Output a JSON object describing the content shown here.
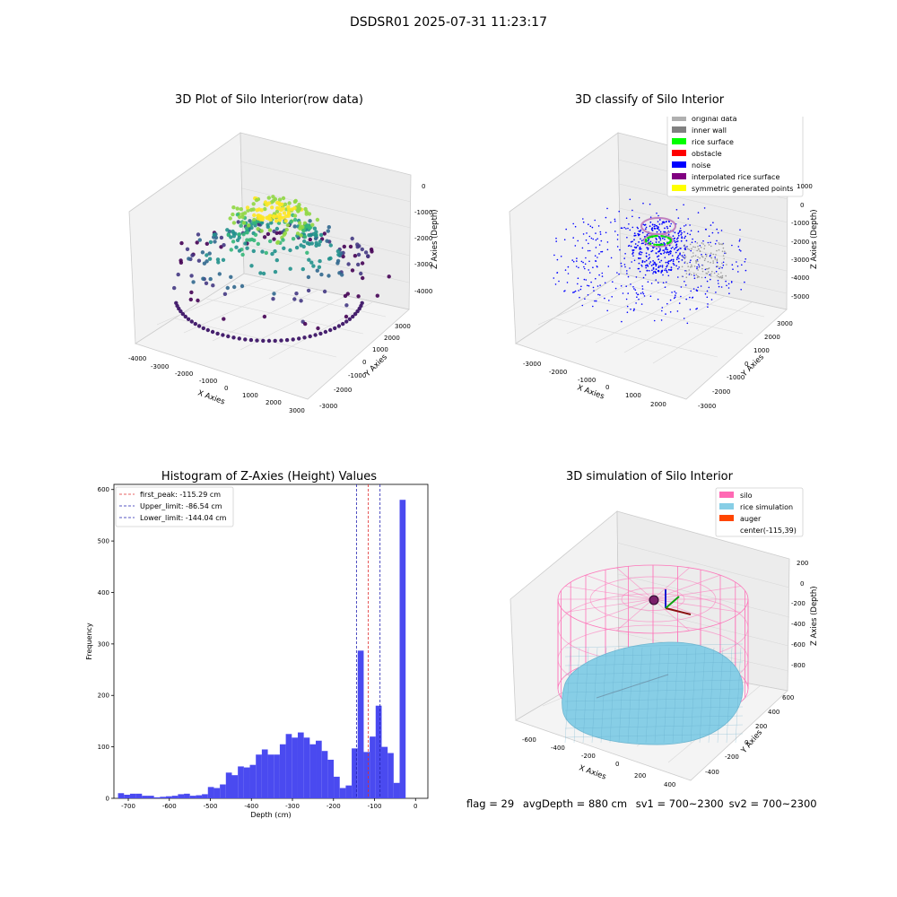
{
  "figure_title": "DSDSR01 2025-07-31 11:23:17",
  "status_line": {
    "flag": "flag = 29",
    "avg_depth": "avgDepth = 880 cm",
    "sv1": "sv1 = 700~2300",
    "sv2": "sv2 = 700~2300"
  },
  "chart_data": [
    {
      "type": "scatter",
      "title": "3D Plot of Silo Interior(row data)",
      "xlabel": "X Axies",
      "ylabel": "Y Axies",
      "zlabel": "Z Axies (Depth)",
      "x_ticks": [
        "-4000",
        "-3000",
        "-2000",
        "-1000",
        "0",
        "1000",
        "2000",
        "3000"
      ],
      "y_ticks": [
        "-3000",
        "-2000",
        "-1000",
        "0",
        "1000",
        "2000",
        "3000"
      ],
      "z_ticks": [
        "0",
        "-1000",
        "-2000",
        "-3000",
        "-4000"
      ],
      "xlim": [
        -4000,
        3000
      ],
      "ylim": [
        -3000,
        3000
      ],
      "zlim": [
        -4500,
        0
      ],
      "colormap": "viridis"
    },
    {
      "type": "scatter",
      "title": "3D classify of Silo Interior",
      "xlabel": "X Axies",
      "ylabel": "Y Axies",
      "zlabel": "Z Axies (Depth)",
      "x_ticks": [
        "-3000",
        "-2000",
        "-1000",
        "0",
        "1000",
        "2000"
      ],
      "y_ticks": [
        "-3000",
        "-2000",
        "-1000",
        "0",
        "1000",
        "2000",
        "3000"
      ],
      "z_ticks": [
        "1000",
        "0",
        "-1000",
        "-2000",
        "-3000",
        "-4000",
        "-5000"
      ],
      "legend_position": "top-right",
      "legend": [
        {
          "label": "original data",
          "color": "#b0b0b0"
        },
        {
          "label": "inner wall",
          "color": "#808080"
        },
        {
          "label": "rice surface",
          "color": "#00ff00"
        },
        {
          "label": "obstacle",
          "color": "#ff0000"
        },
        {
          "label": "noise",
          "color": "#0000ff"
        },
        {
          "label": "interpolated rice surface",
          "color": "#800080"
        },
        {
          "label": "symmetric generated points",
          "color": "#ffff00"
        }
      ]
    },
    {
      "type": "bar",
      "title": "Histogram of Z-Axies (Height) Values",
      "xlabel": "Depth (cm)",
      "ylabel": "Frequency",
      "xlim": [
        -735,
        30
      ],
      "ylim": [
        0,
        610
      ],
      "x_ticks": [
        -700,
        -600,
        -500,
        -400,
        -300,
        -200,
        -100,
        0
      ],
      "y_ticks": [
        0,
        100,
        200,
        300,
        400,
        500,
        600
      ],
      "bar_color": "#4a4af0",
      "bin_start": -725,
      "bin_width": 14.6,
      "values": [
        10,
        7,
        9,
        9,
        5,
        5,
        2,
        3,
        4,
        5,
        8,
        9,
        5,
        6,
        8,
        22,
        20,
        27,
        50,
        45,
        62,
        60,
        65,
        85,
        95,
        85,
        85,
        105,
        125,
        118,
        128,
        118,
        105,
        112,
        92,
        75,
        42,
        20,
        25,
        97,
        287,
        90,
        120,
        180,
        100,
        88,
        30,
        580
      ],
      "vlines": [
        {
          "label": "first_peak: -115.29 cm",
          "value": -115.29,
          "color": "#e03030"
        },
        {
          "label": "Upper_limit: -86.54 cm",
          "value": -86.54,
          "color": "#2020b0"
        },
        {
          "label": "Lower_limit: -144.04 cm",
          "value": -144.04,
          "color": "#2020b0"
        }
      ],
      "legend_position": "top-left"
    },
    {
      "type": "surface",
      "title": "3D simulation of Silo Interior",
      "xlabel": "X Axies",
      "ylabel": "Y Axies",
      "zlabel": "Z Axies (Depth)",
      "x_ticks": [
        "-600",
        "-400",
        "-200",
        "0",
        "200",
        "400"
      ],
      "y_ticks": [
        "-400",
        "-200",
        "0",
        "200",
        "400",
        "600"
      ],
      "z_ticks": [
        "200",
        "0",
        "-200",
        "-400",
        "-600",
        "-800"
      ],
      "legend_position": "top-right",
      "legend": [
        {
          "label": "silo",
          "color": "#ff69b4"
        },
        {
          "label": "rice simulation",
          "color": "#87cee6"
        },
        {
          "label": "auger",
          "color": "#ff4500"
        },
        {
          "label": "center(-115,39)",
          "color": ""
        }
      ]
    }
  ]
}
